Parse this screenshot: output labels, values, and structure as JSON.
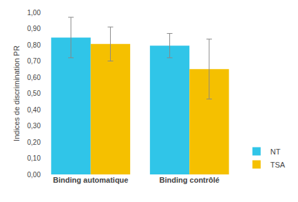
{
  "chart_data": {
    "type": "bar",
    "categories": [
      "Binding automatique",
      "Binding contrôlé"
    ],
    "series": [
      {
        "name": "NT",
        "color": "#30C5E8",
        "values": [
          0.845,
          0.795
        ],
        "errors": [
          0.125,
          0.075
        ]
      },
      {
        "name": "TSA",
        "color": "#F5C000",
        "values": [
          0.805,
          0.65
        ],
        "errors": [
          0.105,
          0.185
        ]
      }
    ],
    "ylabel": "Indices de discrimination PR",
    "ylim": [
      0.0,
      1.0
    ],
    "yticks": [
      {
        "value": 0.0,
        "label": "0,00"
      },
      {
        "value": 0.1,
        "label": "0,10"
      },
      {
        "value": 0.2,
        "label": "0,20"
      },
      {
        "value": 0.3,
        "label": "0,30"
      },
      {
        "value": 0.4,
        "label": "0,40"
      },
      {
        "value": 0.5,
        "label": "0,50"
      },
      {
        "value": 0.6,
        "label": "0,60"
      },
      {
        "value": 0.7,
        "label": "0,70"
      },
      {
        "value": 0.8,
        "label": "0,80"
      },
      {
        "value": 0.9,
        "label": "0,90"
      },
      {
        "value": 1.0,
        "label": "1,00"
      }
    ],
    "grid": false,
    "legend": "lower right"
  }
}
